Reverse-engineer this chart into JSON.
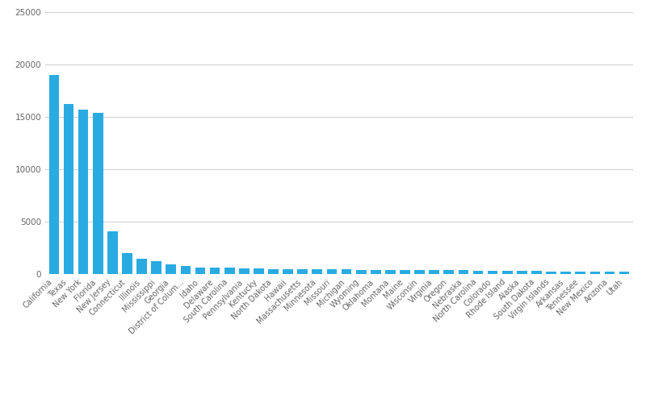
{
  "categories": [
    "California",
    "Texas",
    "New York",
    "Florida",
    "New Jersey",
    "Connecticut",
    "Illinois",
    "Mississippi",
    "Georgia",
    "District of Colum...",
    "Idaho",
    "Delaware",
    "South Carolina",
    "Pennsylvania",
    "Kentucky",
    "North Dakota",
    "Hawaii",
    "Massachusetts",
    "Minnesota",
    "Missouri",
    "Michigan",
    "Wyoming",
    "Oklahoma",
    "Montana",
    "Maine",
    "Wisconsin",
    "Virginia",
    "Oregon",
    "Nebraska",
    "North Carolina",
    "Colorado",
    "Rhode Island",
    "Alaska",
    "South Dakota",
    "Virgin Islands",
    "Arkansas",
    "Tennessee",
    "New Mexico",
    "Arizona",
    "Utah"
  ],
  "values": [
    19000,
    16200,
    15700,
    15400,
    4100,
    2000,
    1500,
    1200,
    900,
    750,
    650,
    600,
    580,
    550,
    520,
    500,
    480,
    470,
    460,
    450,
    440,
    420,
    410,
    400,
    390,
    380,
    370,
    360,
    350,
    340,
    320,
    310,
    290,
    270,
    260,
    240,
    230,
    220,
    210,
    200
  ],
  "bar_color": "#29ABE2",
  "background_color": "#ffffff",
  "grid_color": "#d0d0d0",
  "ylim": [
    0,
    25000
  ],
  "yticks": [
    0,
    5000,
    10000,
    15000,
    20000,
    25000
  ],
  "tick_label_color": "#666666",
  "tick_label_fontsize": 7.5,
  "xtick_label_fontsize": 7
}
